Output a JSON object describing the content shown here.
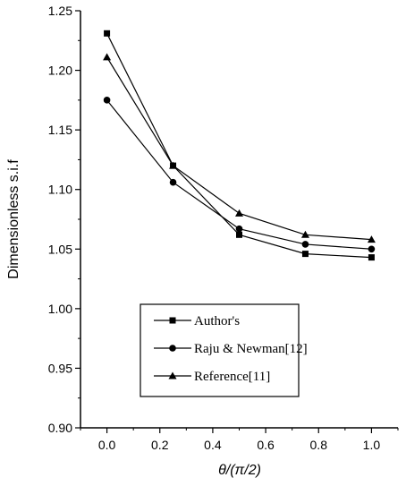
{
  "chart_data": {
    "type": "line",
    "xlabel": "θ/(π/2)",
    "ylabel": "Dimensionless s.i.f",
    "xlim": [
      -0.1,
      1.1
    ],
    "ylim": [
      0.9,
      1.25
    ],
    "xticks": [
      "0.0",
      "0.2",
      "0.4",
      "0.6",
      "0.8",
      "1.0"
    ],
    "yticks": [
      "0.90",
      "0.95",
      "1.00",
      "1.05",
      "1.10",
      "1.15",
      "1.20",
      "1.25"
    ],
    "x": [
      0.0,
      0.25,
      0.5,
      0.75,
      1.0
    ],
    "series": [
      {
        "name": "Author's",
        "marker": "square",
        "values": [
          1.231,
          1.12,
          1.062,
          1.046,
          1.043
        ]
      },
      {
        "name": "Raju & Newman[12]",
        "marker": "circle",
        "values": [
          1.175,
          1.106,
          1.067,
          1.054,
          1.05
        ]
      },
      {
        "name": "Reference[11]",
        "marker": "triangle",
        "values": [
          1.211,
          1.12,
          1.08,
          1.062,
          1.058
        ]
      }
    ],
    "grid": false,
    "legend_position": "lower-center"
  }
}
